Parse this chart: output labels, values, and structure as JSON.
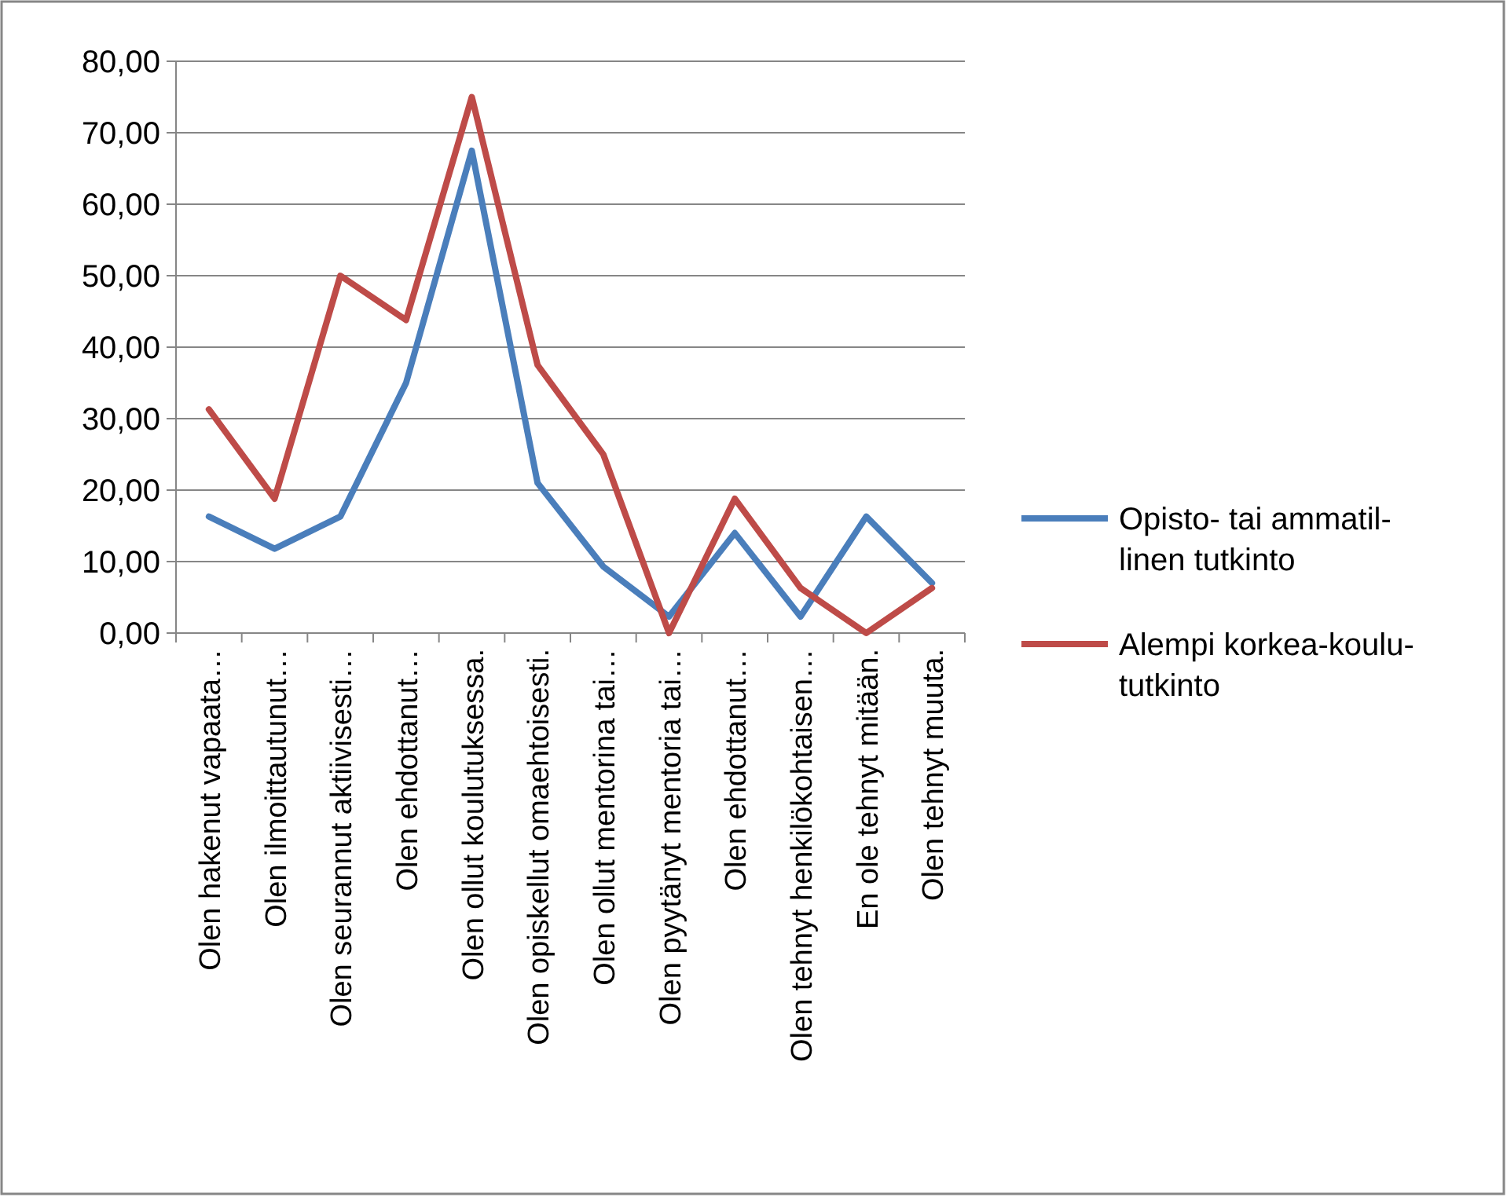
{
  "chart_data": {
    "type": "line",
    "categories": [
      "Olen hakenut vapaata…",
      "Olen ilmoittautunut…",
      "Olen seurannut aktiivisesti…",
      "Olen ehdottanut…",
      "Olen ollut koulutuksessa.",
      "Olen opiskellut omaehtoisesti.",
      "Olen ollut mentorina tai…",
      "Olen pyytänyt mentoria tai…",
      "Olen ehdottanut…",
      "Olen tehnyt henkilökohtaisen…",
      "En ole tehnyt mitään.",
      "Olen tehnyt muuta."
    ],
    "series": [
      {
        "name": "Opisto- tai ammatil-\nlinen tutkinto",
        "color": "#4a7ebb",
        "values": [
          16.3,
          11.8,
          16.3,
          35,
          67.5,
          21,
          9.3,
          2.3,
          14,
          2.3,
          16.3,
          7
        ]
      },
      {
        "name": "Alempi korkea-koulu-\ntutkinto",
        "color": "#be4b48",
        "values": [
          31.3,
          18.8,
          50,
          43.8,
          75,
          37.5,
          25,
          0,
          18.8,
          6.3,
          0,
          6.3
        ]
      }
    ],
    "ylim": [
      0,
      80
    ],
    "yticks": [
      {
        "value": 0,
        "label": "0,00"
      },
      {
        "value": 10,
        "label": "10,00"
      },
      {
        "value": 20,
        "label": "20,00"
      },
      {
        "value": 30,
        "label": "30,00"
      },
      {
        "value": 40,
        "label": "40,00"
      },
      {
        "value": 50,
        "label": "50,00"
      },
      {
        "value": 60,
        "label": "60,00"
      },
      {
        "value": 70,
        "label": "70,00"
      },
      {
        "value": 80,
        "label": "80,00"
      }
    ],
    "grid": "y",
    "legend": "right",
    "line_style": "solid",
    "marker": "none"
  }
}
